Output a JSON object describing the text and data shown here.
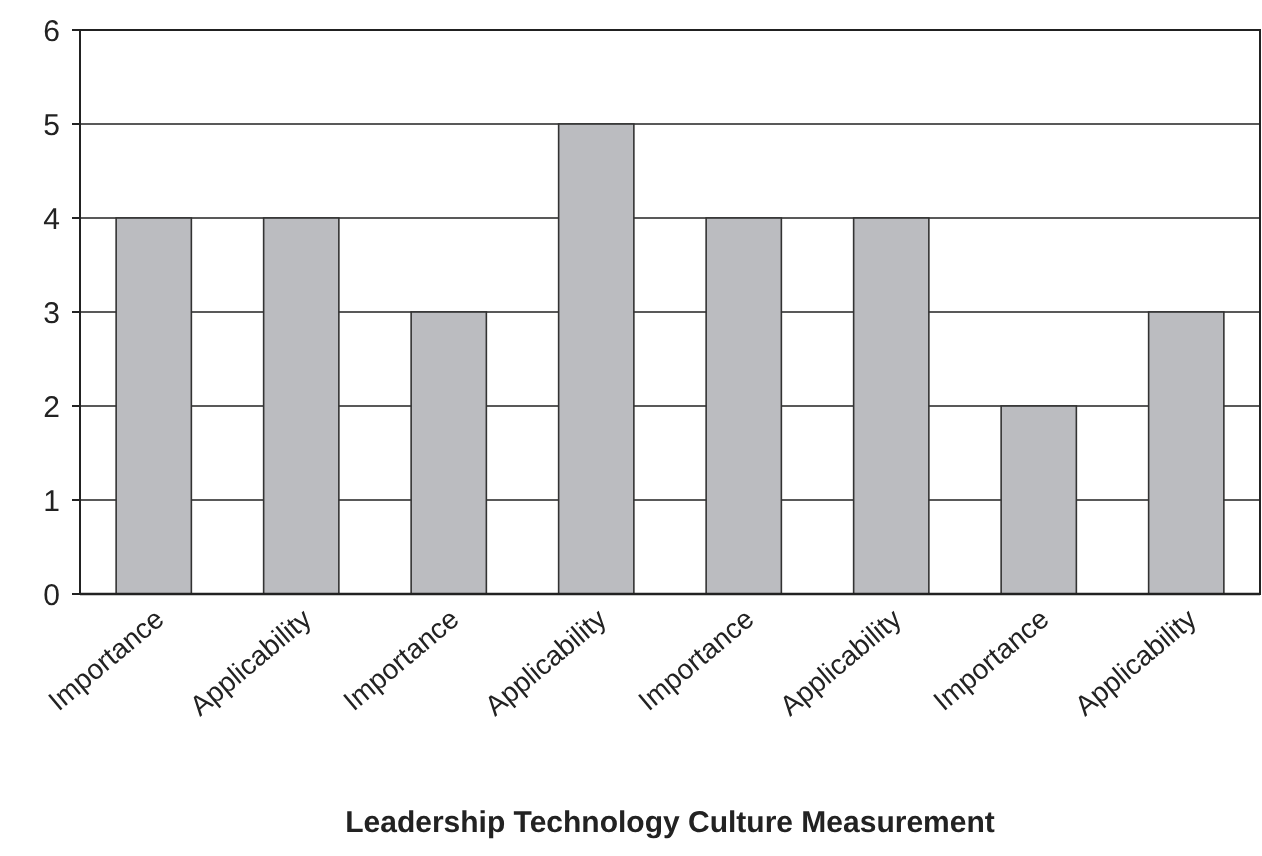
{
  "chart_data": {
    "type": "bar",
    "xlabel": "Leadership Technology Culture Measurement",
    "categories": [
      "Importance",
      "Applicability",
      "Importance",
      "Applicability",
      "Importance",
      "Applicability",
      "Importance",
      "Applicability"
    ],
    "values": [
      4,
      4,
      3,
      5,
      4,
      4,
      2,
      3
    ],
    "color": "#bbbcc0",
    "ylim": [
      0,
      6
    ],
    "yticks": [
      0,
      1,
      2,
      3,
      4,
      5,
      6
    ],
    "grid": "y"
  }
}
